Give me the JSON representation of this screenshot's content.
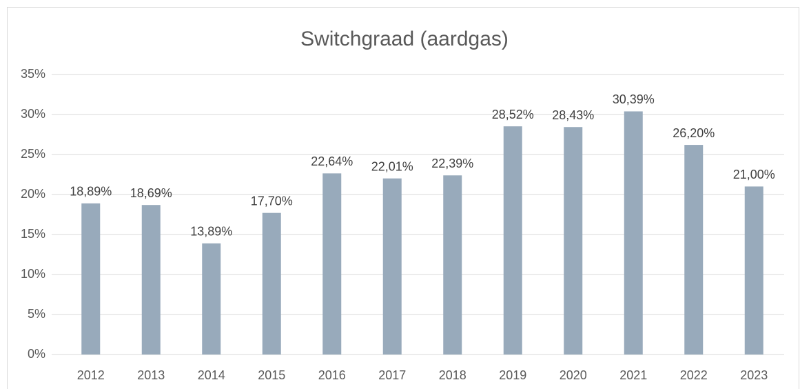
{
  "chart_data": {
    "type": "bar",
    "title": "Switchgraad (aardgas)",
    "categories": [
      "2012",
      "2013",
      "2014",
      "2015",
      "2016",
      "2017",
      "2018",
      "2019",
      "2020",
      "2021",
      "2022",
      "2023"
    ],
    "values": [
      18.89,
      18.69,
      13.89,
      17.7,
      22.64,
      22.01,
      22.39,
      28.52,
      28.43,
      30.39,
      26.2,
      21.0
    ],
    "value_labels": [
      "18,89%",
      "18,69%",
      "13,89%",
      "17,70%",
      "22,64%",
      "22,01%",
      "22,39%",
      "28,52%",
      "28,43%",
      "30,39%",
      "26,20%",
      "21,00%"
    ],
    "color": "#98aabb",
    "ylim": [
      0,
      35
    ],
    "yticks": [
      {
        "value": 0,
        "label": "0%"
      },
      {
        "value": 5,
        "label": "5%"
      },
      {
        "value": 10,
        "label": "10%"
      },
      {
        "value": 15,
        "label": "15%"
      },
      {
        "value": 20,
        "label": "20%"
      },
      {
        "value": 25,
        "label": "25%"
      },
      {
        "value": 30,
        "label": "30%"
      },
      {
        "value": 35,
        "label": "35%"
      }
    ],
    "grid": true
  }
}
